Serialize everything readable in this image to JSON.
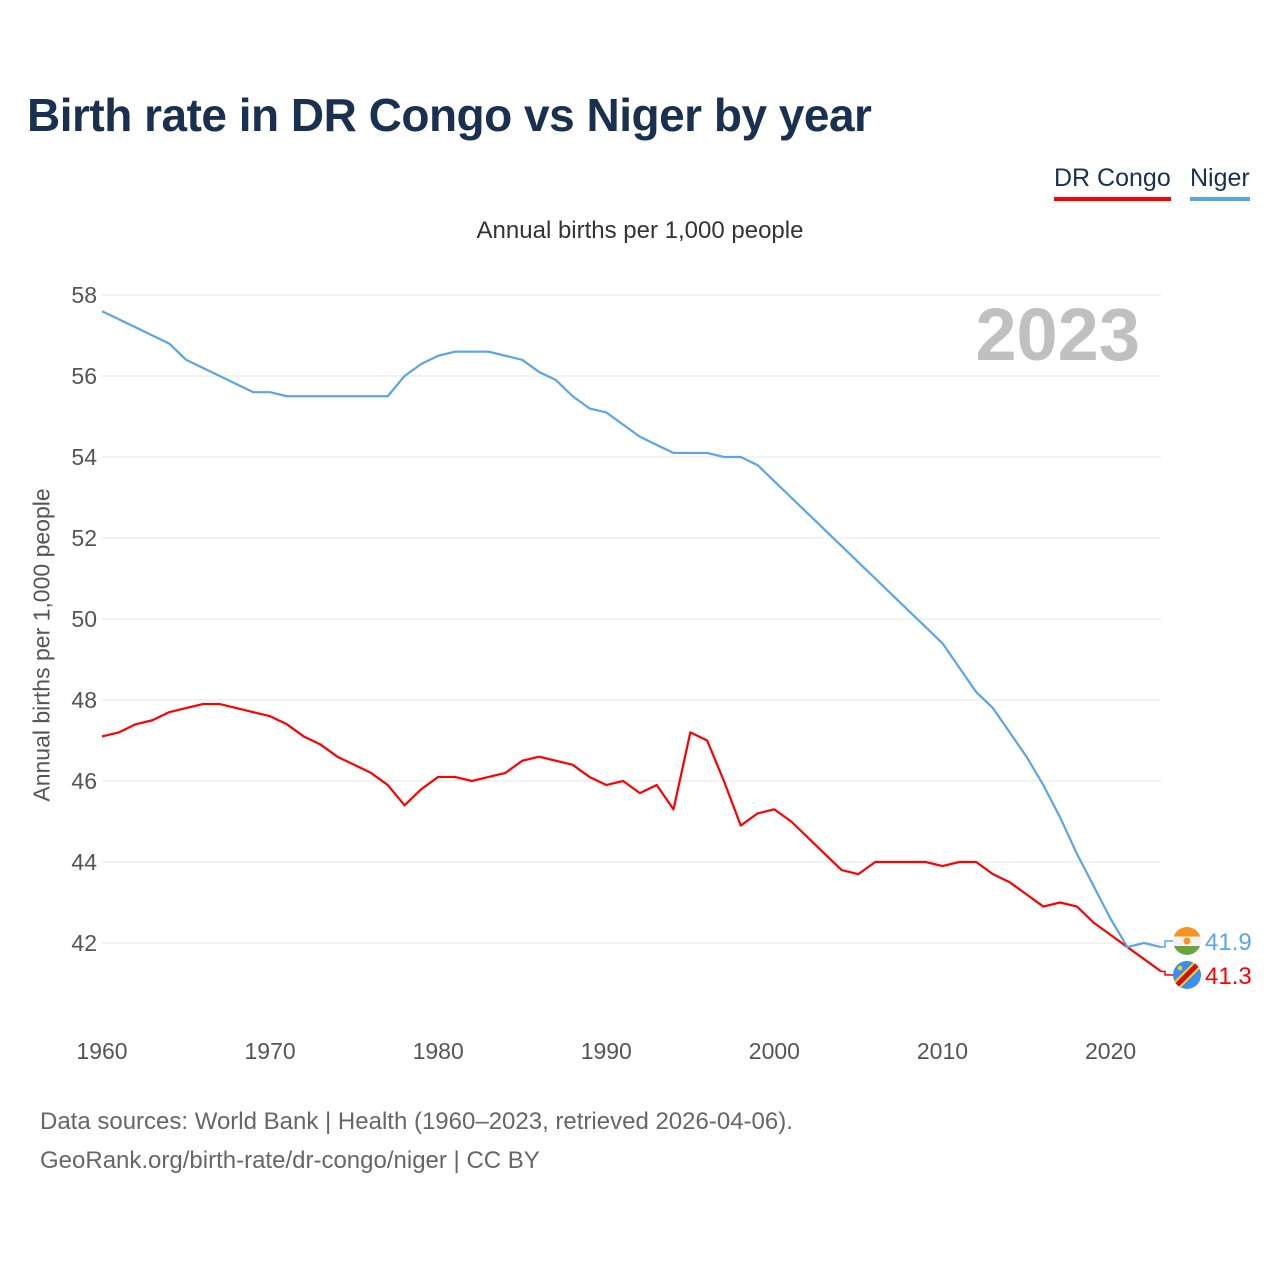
{
  "title": "Birth rate in DR Congo vs Niger by year",
  "legend": {
    "drc": "DR Congo",
    "niger": "Niger"
  },
  "subtitle": "Annual births per 1,000 people",
  "footer": {
    "line1": "Data sources: World Bank | Health (1960–2023, retrieved 2026-04-06).",
    "line2": "GeoRank.org/birth-rate/dr-congo/niger | CC BY"
  },
  "chart_data": {
    "type": "line",
    "title": "Birth rate in DR Congo vs Niger by year",
    "ylabel": "Annual births per 1,000 people",
    "xlabel": "",
    "year_badge": "2023",
    "xlim": [
      1960,
      2023
    ],
    "ylim": [
      42,
      58
    ],
    "xticks": [
      1960,
      1970,
      1980,
      1990,
      2000,
      2010,
      2020
    ],
    "yticks": [
      42,
      44,
      46,
      48,
      50,
      52,
      54,
      56,
      58
    ],
    "grid": true,
    "legend_position": "top-right",
    "x_start": 1960,
    "series": [
      {
        "name": "DR Congo",
        "color": "#ff0000",
        "end_label": "41.3",
        "values": [
          47.1,
          47.2,
          47.4,
          47.5,
          47.7,
          47.8,
          47.9,
          47.9,
          47.8,
          47.7,
          47.6,
          47.4,
          47.1,
          46.9,
          46.6,
          46.4,
          46.2,
          45.9,
          45.4,
          45.8,
          46.1,
          46.1,
          46.0,
          46.1,
          46.2,
          46.5,
          46.6,
          46.5,
          46.4,
          46.1,
          45.9,
          46.0,
          45.7,
          45.9,
          45.3,
          47.2,
          47.0,
          46.0,
          44.9,
          45.2,
          45.3,
          45.0,
          44.6,
          44.2,
          43.8,
          43.7,
          44.0,
          44.0,
          44.0,
          44.0,
          43.9,
          44.0,
          44.0,
          43.7,
          43.5,
          43.2,
          42.9,
          43.0,
          42.9,
          42.5,
          42.2,
          41.9,
          41.6,
          41.3
        ]
      },
      {
        "name": "Niger",
        "color": "#5aa5ea",
        "end_label": "41.9",
        "values": [
          57.6,
          57.4,
          57.2,
          57.0,
          56.8,
          56.4,
          56.2,
          56.0,
          55.8,
          55.6,
          55.6,
          55.5,
          55.5,
          55.5,
          55.5,
          55.5,
          55.5,
          55.5,
          56.0,
          56.3,
          56.5,
          56.6,
          56.6,
          56.6,
          56.5,
          56.4,
          56.1,
          55.9,
          55.5,
          55.2,
          55.1,
          54.8,
          54.5,
          54.3,
          54.1,
          54.1,
          54.1,
          54.0,
          54.0,
          53.8,
          53.4,
          53.0,
          52.6,
          52.2,
          51.8,
          51.4,
          51.0,
          50.6,
          50.2,
          49.8,
          49.4,
          48.8,
          48.2,
          47.8,
          47.2,
          46.6,
          45.9,
          45.1,
          44.2,
          43.4,
          42.6,
          41.9,
          42.0,
          41.9
        ]
      }
    ]
  }
}
